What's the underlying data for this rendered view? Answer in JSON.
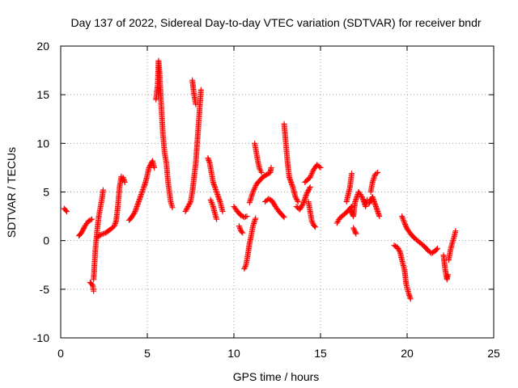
{
  "chart_data": {
    "type": "scatter",
    "title": "Day 137 of 2022, Sidereal Day-to-day VTEC variation (SDTVAR) for receiver bndr",
    "xlabel": "GPS time / hours",
    "ylabel": "SDTVAR / TECUs",
    "xlim": [
      0,
      25
    ],
    "ylim": [
      -10,
      20
    ],
    "xticks": [
      0,
      5,
      10,
      15,
      20,
      25
    ],
    "yticks": [
      -10,
      -5,
      0,
      5,
      10,
      15,
      20
    ],
    "xtick_labels": [
      "0",
      "5",
      "10",
      "15",
      "20",
      "25"
    ],
    "ytick_labels": [
      "-10",
      "-5",
      "0",
      "5",
      "10",
      "15",
      "20"
    ],
    "grid": true,
    "marker": "+",
    "series": [
      {
        "name": "SDTVAR bndr",
        "color": "#ff0000",
        "segments": [
          [
            [
              0.2,
              3.3
            ],
            [
              0.3,
              3.1
            ],
            [
              0.35,
              3.0
            ]
          ],
          [
            [
              1.05,
              0.5
            ],
            [
              1.2,
              0.8
            ],
            [
              1.4,
              1.5
            ],
            [
              1.6,
              2.0
            ],
            [
              1.8,
              2.2
            ]
          ],
          [
            [
              1.7,
              -4.3
            ],
            [
              1.85,
              -4.6
            ],
            [
              1.9,
              -5.2
            ]
          ],
          [
            [
              1.9,
              -4.0
            ],
            [
              2.0,
              -1.0
            ],
            [
              2.1,
              1.0
            ],
            [
              2.2,
              2.5
            ],
            [
              2.3,
              3.5
            ],
            [
              2.4,
              4.5
            ],
            [
              2.45,
              5.2
            ]
          ],
          [
            [
              2.1,
              0.3
            ],
            [
              2.3,
              0.6
            ],
            [
              2.6,
              0.8
            ],
            [
              2.9,
              1.2
            ],
            [
              3.1,
              1.5
            ],
            [
              3.2,
              2.0
            ],
            [
              3.3,
              3.5
            ],
            [
              3.4,
              5.5
            ],
            [
              3.5,
              6.6
            ],
            [
              3.6,
              6.5
            ],
            [
              3.7,
              6.0
            ]
          ],
          [
            [
              3.95,
              2.1
            ],
            [
              4.1,
              2.4
            ],
            [
              4.3,
              3.0
            ],
            [
              4.5,
              4.0
            ],
            [
              4.7,
              5.0
            ],
            [
              4.9,
              6.0
            ],
            [
              5.1,
              7.5
            ],
            [
              5.3,
              8.2
            ],
            [
              5.4,
              7.5
            ]
          ],
          [
            [
              5.5,
              14.5
            ],
            [
              5.6,
              16.0
            ],
            [
              5.65,
              18.5
            ],
            [
              5.7,
              17.5
            ],
            [
              5.8,
              14.0
            ],
            [
              5.9,
              11.0
            ],
            [
              6.0,
              9.0
            ],
            [
              6.1,
              8.0
            ],
            [
              6.2,
              6.0
            ],
            [
              6.35,
              4.0
            ],
            [
              6.45,
              3.4
            ]
          ],
          [
            [
              7.2,
              3.0
            ],
            [
              7.35,
              3.5
            ],
            [
              7.5,
              4.0
            ],
            [
              7.6,
              5.0
            ],
            [
              7.7,
              6.5
            ],
            [
              7.8,
              8.0
            ],
            [
              7.9,
              10.5
            ],
            [
              8.0,
              13.0
            ],
            [
              8.1,
              15.5
            ]
          ],
          [
            [
              7.6,
              16.5
            ],
            [
              7.7,
              15.0
            ],
            [
              7.8,
              14.0
            ]
          ],
          [
            [
              8.5,
              8.5
            ],
            [
              8.6,
              8.0
            ],
            [
              8.7,
              7.0
            ],
            [
              8.8,
              6.0
            ],
            [
              9.0,
              5.0
            ],
            [
              9.2,
              4.0
            ],
            [
              9.35,
              3.0
            ]
          ],
          [
            [
              8.65,
              4.2
            ],
            [
              8.8,
              3.5
            ],
            [
              8.9,
              2.8
            ],
            [
              9.0,
              2.2
            ]
          ],
          [
            [
              10.0,
              3.5
            ],
            [
              10.2,
              3.0
            ],
            [
              10.4,
              2.6
            ],
            [
              10.6,
              2.4
            ],
            [
              10.75,
              2.5
            ]
          ],
          [
            [
              10.3,
              1.5
            ],
            [
              10.4,
              1.0
            ],
            [
              10.5,
              0.8
            ]
          ],
          [
            [
              10.6,
              -2.9
            ],
            [
              10.7,
              -2.5
            ],
            [
              10.8,
              -1.5
            ],
            [
              10.9,
              -0.3
            ],
            [
              11.0,
              0.5
            ],
            [
              11.1,
              1.5
            ],
            [
              11.25,
              2.3
            ]
          ],
          [
            [
              10.9,
              3.9
            ],
            [
              11.1,
              5.0
            ],
            [
              11.3,
              5.8
            ],
            [
              11.5,
              6.2
            ],
            [
              11.65,
              6.5
            ],
            [
              11.9,
              6.8
            ],
            [
              12.1,
              7.0
            ],
            [
              12.15,
              7.5
            ]
          ],
          [
            [
              11.2,
              10.0
            ],
            [
              11.3,
              9.0
            ],
            [
              11.4,
              8.0
            ],
            [
              11.5,
              7.3
            ],
            [
              11.6,
              7.0
            ]
          ],
          [
            [
              11.8,
              4.0
            ],
            [
              12.0,
              4.3
            ],
            [
              12.2,
              4.1
            ],
            [
              12.4,
              3.5
            ],
            [
              12.6,
              3.0
            ],
            [
              12.8,
              2.6
            ],
            [
              12.9,
              2.4
            ]
          ],
          [
            [
              12.9,
              12.0
            ],
            [
              13.0,
              10.0
            ],
            [
              13.1,
              8.0
            ],
            [
              13.2,
              6.5
            ],
            [
              13.4,
              5.5
            ],
            [
              13.55,
              4.5
            ],
            [
              13.7,
              4.0
            ]
          ],
          [
            [
              13.6,
              3.5
            ],
            [
              13.8,
              3.2
            ],
            [
              14.0,
              3.8
            ],
            [
              14.2,
              4.8
            ],
            [
              14.4,
              5.5
            ]
          ],
          [
            [
              14.3,
              4.0
            ],
            [
              14.4,
              3.0
            ],
            [
              14.5,
              2.0
            ],
            [
              14.6,
              1.6
            ],
            [
              14.7,
              1.4
            ]
          ],
          [
            [
              14.1,
              6.0
            ],
            [
              14.4,
              6.5
            ],
            [
              14.6,
              7.3
            ],
            [
              14.8,
              7.8
            ],
            [
              15.0,
              7.5
            ]
          ],
          [
            [
              15.95,
              1.8
            ],
            [
              16.1,
              2.3
            ],
            [
              16.3,
              2.6
            ],
            [
              16.5,
              2.9
            ],
            [
              16.7,
              3.3
            ],
            [
              16.8,
              3.5
            ]
          ],
          [
            [
              16.5,
              4.0
            ],
            [
              16.7,
              5.5
            ],
            [
              16.8,
              6.9
            ]
          ],
          [
            [
              16.7,
              3.2
            ],
            [
              16.9,
              2.5
            ],
            [
              17.0,
              4.0
            ],
            [
              17.2,
              5.0
            ],
            [
              17.4,
              4.5
            ],
            [
              17.6,
              3.5
            ],
            [
              17.7,
              4.2
            ]
          ],
          [
            [
              16.9,
              1.3
            ],
            [
              17.0,
              0.9
            ],
            [
              17.05,
              0.7
            ]
          ],
          [
            [
              17.8,
              3.8
            ],
            [
              18.0,
              4.5
            ],
            [
              18.2,
              3.5
            ],
            [
              18.4,
              2.5
            ]
          ],
          [
            [
              17.9,
              5.0
            ],
            [
              18.0,
              6.0
            ],
            [
              18.15,
              6.8
            ],
            [
              18.3,
              7.0
            ]
          ],
          [
            [
              19.25,
              -0.5
            ],
            [
              19.45,
              -0.7
            ],
            [
              19.6,
              -1.2
            ],
            [
              19.7,
              -2.0
            ],
            [
              19.85,
              -3.0
            ],
            [
              19.95,
              -4.5
            ],
            [
              20.1,
              -5.5
            ],
            [
              20.2,
              -6.0
            ]
          ],
          [
            [
              19.7,
              2.5
            ],
            [
              19.85,
              1.8
            ],
            [
              20.0,
              1.2
            ],
            [
              20.2,
              0.7
            ],
            [
              20.4,
              0.3
            ],
            [
              20.6,
              0.0
            ],
            [
              20.8,
              -0.3
            ],
            [
              21.0,
              -0.6
            ],
            [
              21.2,
              -1.0
            ],
            [
              21.4,
              -1.3
            ],
            [
              21.6,
              -1.1
            ],
            [
              21.75,
              -0.8
            ]
          ],
          [
            [
              22.1,
              -1.5
            ],
            [
              22.2,
              -3.0
            ],
            [
              22.3,
              -4.0
            ],
            [
              22.35,
              -3.5
            ]
          ],
          [
            [
              22.4,
              -2.0
            ],
            [
              22.5,
              -1.0
            ],
            [
              22.6,
              -0.3
            ],
            [
              22.7,
              0.3
            ],
            [
              22.8,
              1.0
            ]
          ]
        ]
      }
    ]
  }
}
